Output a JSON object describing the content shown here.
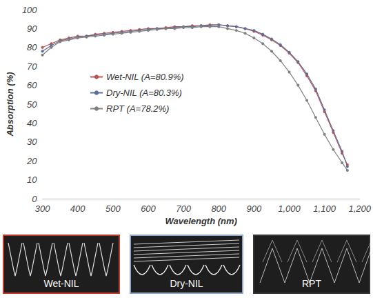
{
  "chart_data": {
    "type": "line",
    "x_label": "Wavelength (nm)",
    "y_label": "Absorption (%)",
    "x": [
      300,
      325,
      350,
      375,
      400,
      425,
      450,
      475,
      500,
      525,
      550,
      575,
      600,
      625,
      650,
      675,
      700,
      725,
      750,
      775,
      800,
      825,
      850,
      875,
      900,
      925,
      950,
      975,
      1000,
      1025,
      1050,
      1075,
      1100,
      1125,
      1150,
      1165
    ],
    "series": [
      {
        "name": "Wet-NIL (A=80.9%)",
        "color": "#b85450",
        "values": [
          80,
          82,
          84,
          85,
          86,
          86,
          87,
          87.5,
          88,
          88.5,
          89,
          89.5,
          90,
          90,
          90.5,
          91,
          91,
          91.5,
          91.5,
          92,
          92,
          91.5,
          91,
          90,
          88.5,
          86.5,
          84,
          81,
          77,
          72,
          65,
          57,
          46,
          35,
          24,
          18
        ]
      },
      {
        "name": "Dry-NIL (A=80.3%)",
        "color": "#5a6e99",
        "values": [
          78,
          81,
          83.5,
          84.5,
          85.5,
          86,
          86.5,
          87,
          87.5,
          88,
          88.5,
          89,
          89.5,
          90,
          90,
          90.5,
          91,
          91,
          91.5,
          91.5,
          92,
          91.5,
          91,
          90,
          89,
          87,
          84.5,
          81.5,
          77.5,
          72.5,
          66,
          58,
          47,
          36,
          25,
          17
        ]
      },
      {
        "name": "RPT (A=78.2%)",
        "color": "#808080",
        "values": [
          76,
          80,
          83,
          84,
          85,
          85.5,
          86,
          86.5,
          87,
          87.5,
          88,
          88.5,
          89,
          89.5,
          90,
          90,
          90.5,
          90.5,
          91,
          91,
          91,
          90,
          89,
          87.5,
          85,
          82,
          78,
          73,
          67,
          60,
          52,
          43,
          34,
          26,
          19,
          15
        ]
      }
    ],
    "xlim": [
      300,
      1200
    ],
    "xticks": [
      300,
      400,
      500,
      600,
      700,
      800,
      900,
      1000,
      1100,
      1200
    ],
    "ylim": [
      0,
      100
    ],
    "yticks": [
      0,
      10,
      20,
      30,
      40,
      50,
      60,
      70,
      80,
      90,
      100
    ],
    "grid": false,
    "legend": "left",
    "marker": "circle",
    "line_style": "solid"
  },
  "image_panels": [
    {
      "label": "Wet-NIL"
    },
    {
      "label": "Dry-NIL"
    },
    {
      "label": "RPT"
    }
  ]
}
